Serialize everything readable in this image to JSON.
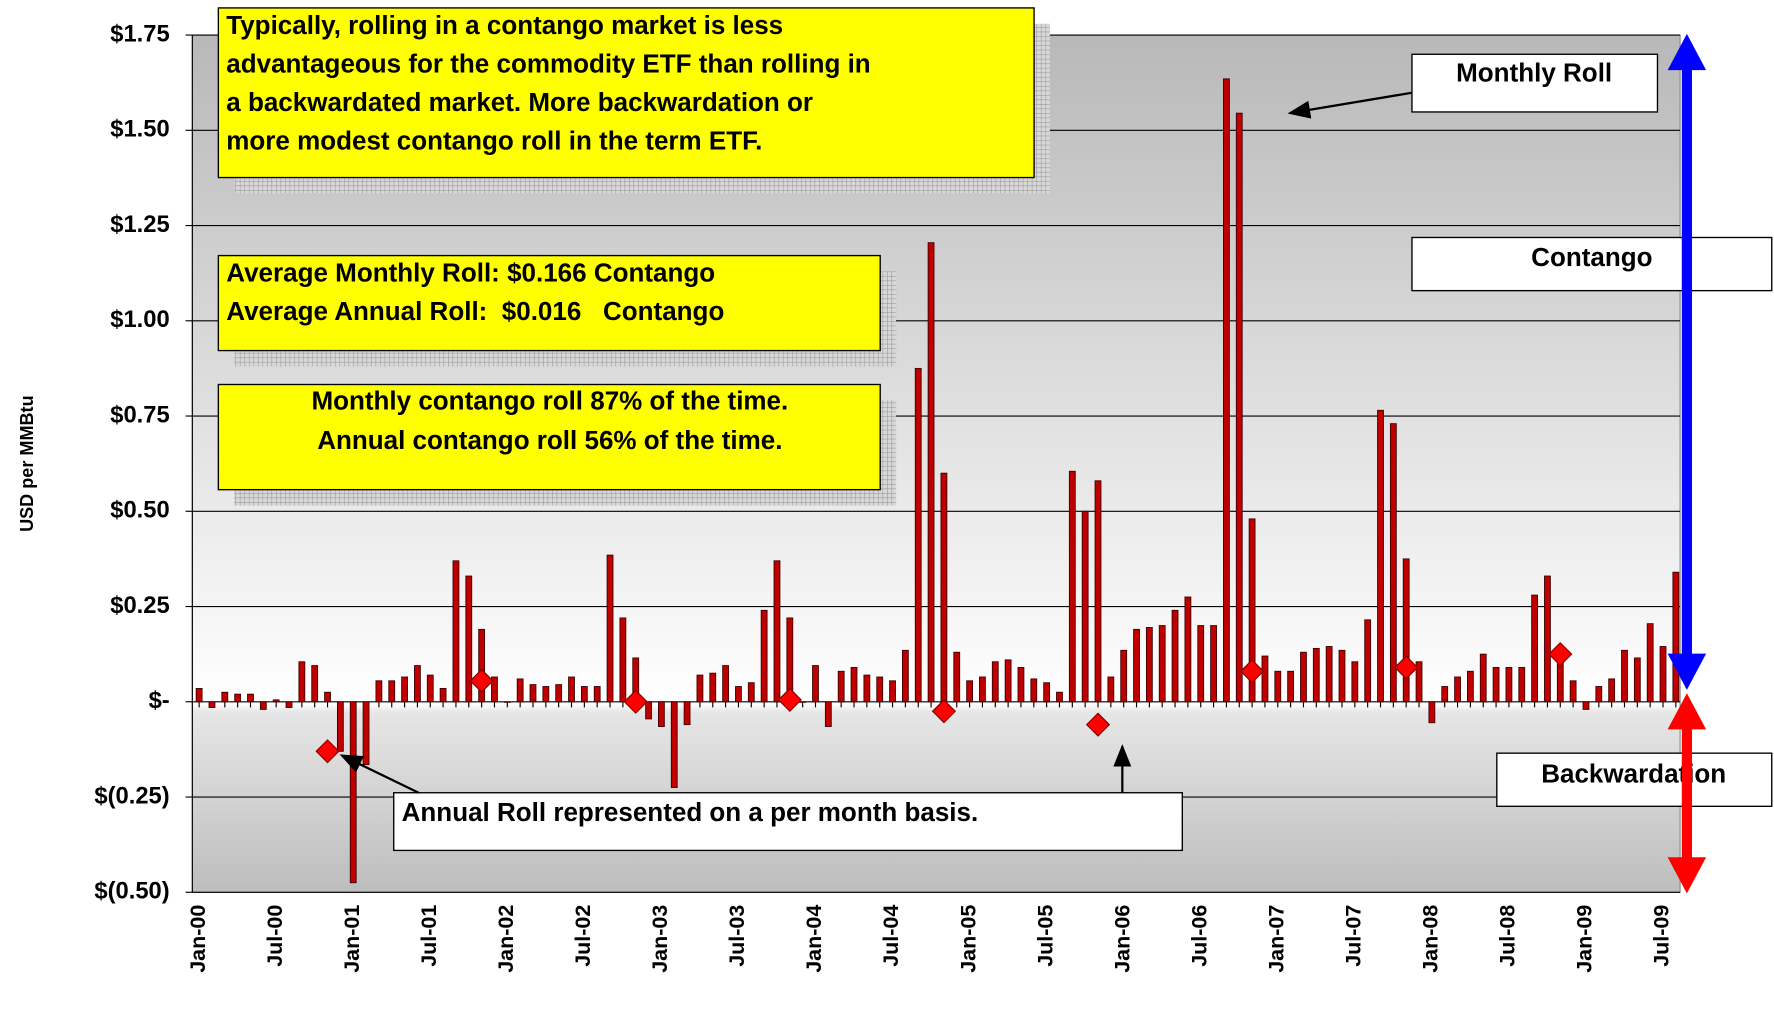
{
  "chart_data": {
    "type": "bar",
    "y_label": "USD per MMBtu",
    "ylim": [
      -0.5,
      1.75
    ],
    "yticks": [
      {
        "value": -0.5,
        "label": "$(0.50)"
      },
      {
        "value": -0.25,
        "label": "$(0.25)"
      },
      {
        "value": 0,
        "label": "$-"
      },
      {
        "value": 0.25,
        "label": "$0.25"
      },
      {
        "value": 0.5,
        "label": "$0.50"
      },
      {
        "value": 0.75,
        "label": "$0.75"
      },
      {
        "value": 1.0,
        "label": "$1.00"
      },
      {
        "value": 1.25,
        "label": "$1.25"
      },
      {
        "value": 1.5,
        "label": "$1.50"
      },
      {
        "value": 1.75,
        "label": "$1.75"
      }
    ],
    "grid": true,
    "categories": [
      "Jan-00",
      null,
      null,
      null,
      null,
      null,
      "Jul-00",
      null,
      null,
      null,
      null,
      null,
      "Jan-01",
      null,
      null,
      null,
      null,
      null,
      "Jul-01",
      null,
      null,
      null,
      null,
      null,
      "Jan-02",
      null,
      null,
      null,
      null,
      null,
      "Jul-02",
      null,
      null,
      null,
      null,
      null,
      "Jan-03",
      null,
      null,
      null,
      null,
      null,
      "Jul-03",
      null,
      null,
      null,
      null,
      null,
      "Jan-04",
      null,
      null,
      null,
      null,
      null,
      "Jul-04",
      null,
      null,
      null,
      null,
      null,
      "Jan-05",
      null,
      null,
      null,
      null,
      null,
      "Jul-05",
      null,
      null,
      null,
      null,
      null,
      "Jan-06",
      null,
      null,
      null,
      null,
      null,
      "Jul-06",
      null,
      null,
      null,
      null,
      null,
      "Jan-07",
      null,
      null,
      null,
      null,
      null,
      "Jul-07",
      null,
      null,
      null,
      null,
      null,
      "Jan-08",
      null,
      null,
      null,
      null,
      null,
      "Jul-08",
      null,
      null,
      null,
      null,
      null,
      "Jan-09",
      null,
      null,
      null,
      null,
      null,
      "Jul-09",
      null
    ],
    "series": [
      {
        "kind": "bar",
        "color": "#c00000",
        "values": [
          0.035,
          -0.015,
          0.025,
          0.02,
          0.02,
          -0.02,
          0.005,
          -0.015,
          0.105,
          0.095,
          0.025,
          -0.13,
          -0.475,
          -0.165,
          0.055,
          0.055,
          0.065,
          0.095,
          0.07,
          0.035,
          0.37,
          0.33,
          0.19,
          0.065,
          0,
          0.06,
          0.045,
          0.04,
          0.045,
          0.065,
          0.04,
          0.04,
          0.385,
          0.22,
          0.115,
          -0.045,
          -0.065,
          -0.225,
          -0.06,
          0.07,
          0.075,
          0.095,
          0.04,
          0.05,
          0.24,
          0.37,
          0.22,
          0,
          0.095,
          -0.065,
          0.08,
          0.09,
          0.07,
          0.065,
          0.055,
          0.135,
          0.875,
          1.205,
          0.6,
          0.13,
          0.055,
          0.065,
          0.105,
          0.11,
          0.09,
          0.06,
          0.05,
          0.025,
          0.605,
          0.5,
          0.58,
          0.065,
          0.135,
          0.19,
          0.195,
          0.2,
          0.24,
          0.275,
          0.2,
          0.2,
          1.635,
          1.545,
          0.48,
          0.12,
          0.08,
          0.08,
          0.13,
          0.14,
          0.145,
          0.135,
          0.105,
          0.215,
          0.765,
          0.73,
          0.375,
          0.105,
          -0.055,
          0.04,
          0.065,
          0.08,
          0.125,
          0.09,
          0.09,
          0.09,
          0.28,
          0.33,
          0.13,
          0.055,
          -0.02,
          0.04,
          0.06,
          0.135,
          0.115,
          0.205,
          0.145,
          0.34
        ]
      },
      {
        "kind": "marker",
        "color": "#ff0000",
        "values": [
          null,
          null,
          null,
          null,
          null,
          null,
          null,
          null,
          null,
          null,
          -0.13,
          null,
          null,
          null,
          null,
          null,
          null,
          null,
          null,
          null,
          null,
          null,
          0.055,
          null,
          null,
          null,
          null,
          null,
          null,
          null,
          null,
          null,
          null,
          null,
          0,
          null,
          null,
          null,
          null,
          null,
          null,
          null,
          null,
          null,
          null,
          null,
          0.005,
          null,
          null,
          null,
          null,
          null,
          null,
          null,
          null,
          null,
          null,
          null,
          -0.025,
          null,
          null,
          null,
          null,
          null,
          null,
          null,
          null,
          null,
          null,
          null,
          -0.06,
          null,
          null,
          null,
          null,
          null,
          null,
          null,
          null,
          null,
          null,
          null,
          0.08,
          null,
          null,
          null,
          null,
          null,
          null,
          null,
          null,
          null,
          null,
          null,
          0.09,
          null,
          null,
          null,
          null,
          null,
          null,
          null,
          null,
          null,
          null,
          null,
          0.125,
          null,
          null,
          null,
          null,
          null,
          null,
          null,
          null,
          null
        ]
      }
    ],
    "annotations": [
      [
        "Typically, rolling in a contango market is less",
        "advantageous for the commodity ETF than rolling in",
        "a backwardated market. More backwardation or",
        "more modest contango roll in the term ETF."
      ],
      [
        "Average Monthly Roll: $0.166 Contango",
        "Average Annual Roll:  $0.016   Contango"
      ],
      [
        "Monthly contango roll 87% of the time.",
        "Annual contango roll 56% of the time."
      ],
      [
        "Monthly Roll"
      ],
      [
        "Contango"
      ],
      [
        "Backwardation"
      ],
      [
        "Annual Roll represented on a per month basis."
      ]
    ]
  }
}
